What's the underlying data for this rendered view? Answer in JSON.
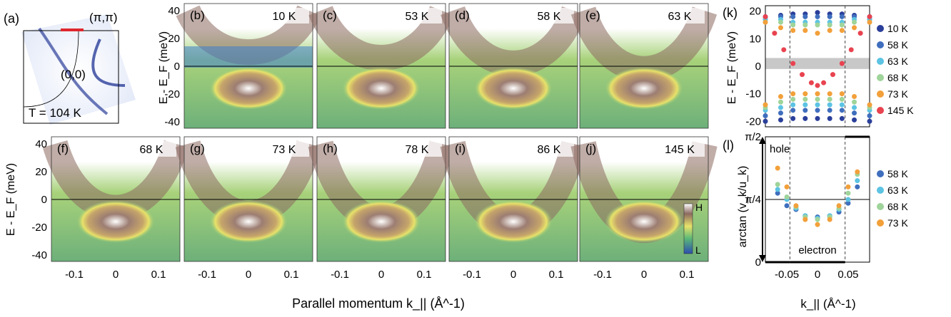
{
  "fermi_panel": {
    "label": "(a)",
    "corner_label": "(π,π)",
    "center_label": "(0,0)",
    "temp_label": "T = 104 K"
  },
  "panels_top_ylabel": "E - E_F (meV)",
  "panels_bottom_ylabel": "E - E_F (meV)",
  "yticks_map": [
    "40",
    "20",
    "0",
    "-20",
    "-40"
  ],
  "xticks_map": [
    "-0.1",
    "0",
    "0.1"
  ],
  "xlabel_shared": "Parallel momentum k_|| (Å^-1)",
  "colorbar": {
    "high": "H",
    "low": "L"
  },
  "map_panels": [
    {
      "label": "(b)",
      "temp": "10 K"
    },
    {
      "label": "(c)",
      "temp": "53 K"
    },
    {
      "label": "(d)",
      "temp": "58 K"
    },
    {
      "label": "(e)",
      "temp": "63 K"
    },
    {
      "label": "(f)",
      "temp": "68 K"
    },
    {
      "label": "(g)",
      "temp": "73 K"
    },
    {
      "label": "(h)",
      "temp": "78 K"
    },
    {
      "label": "(i)",
      "temp": "86 K"
    },
    {
      "label": "(j)",
      "temp": "145 K"
    }
  ],
  "chart_data": [
    {
      "type": "scatter",
      "panel": "(k)",
      "ylabel": "E - E_F (meV)",
      "ylim": [
        -22,
        22
      ],
      "xlim": [
        -0.085,
        0.085
      ],
      "yticks": [
        "20",
        "10",
        "0",
        "-10",
        "-20"
      ],
      "xticks": [
        "-0.05",
        "0",
        "0.05"
      ],
      "series": [
        {
          "name": "10 K",
          "color": "#2a3f9a",
          "x": [
            -0.085,
            -0.06,
            -0.04,
            -0.02,
            0,
            0.02,
            0.04,
            0.06,
            0.085
          ],
          "y_upper": [
            18,
            18.5,
            19,
            19,
            19.5,
            19,
            19,
            18.5,
            18
          ],
          "y_lower": [
            -20,
            -19.5,
            -19,
            -19,
            -19,
            -19,
            -19,
            -19.5,
            -20
          ]
        },
        {
          "name": "58 K",
          "color": "#3f6ebd",
          "x": [
            -0.085,
            -0.06,
            -0.04,
            -0.02,
            0,
            0.02,
            0.04,
            0.06,
            0.085
          ],
          "y_upper": [
            17,
            18,
            18,
            18,
            18,
            18,
            18,
            18,
            17
          ],
          "y_lower": [
            -18,
            -17,
            -16,
            -16,
            -16,
            -16,
            -16,
            -17,
            -18
          ]
        },
        {
          "name": "63 K",
          "color": "#5cc3e3",
          "x": [
            -0.085,
            -0.06,
            -0.04,
            -0.02,
            0,
            0.02,
            0.04,
            0.06,
            0.085
          ],
          "y_upper": [
            17,
            17,
            16,
            16,
            16,
            16,
            16,
            17,
            17
          ],
          "y_lower": [
            -16,
            -15,
            -14,
            -14,
            -14,
            -14,
            -14,
            -15,
            -16
          ]
        },
        {
          "name": "68 K",
          "color": "#9fd49a",
          "x": [
            -0.085,
            -0.06,
            -0.04,
            -0.02,
            0,
            0.02,
            0.04,
            0.06,
            0.085
          ],
          "y_upper": [
            16,
            16,
            15,
            15,
            15,
            15,
            15,
            16,
            16
          ],
          "y_lower": [
            -15,
            -13,
            -12,
            -12,
            -12,
            -12,
            -12,
            -13,
            -15
          ]
        },
        {
          "name": "73 K",
          "color": "#f2a03a",
          "x": [
            -0.085,
            -0.06,
            -0.04,
            -0.02,
            0,
            0.02,
            0.04,
            0.06,
            0.085
          ],
          "y_upper": [
            16,
            14,
            13,
            13,
            12,
            13,
            13,
            14,
            16
          ],
          "y_lower": [
            -14,
            -11,
            -10,
            -10,
            -10,
            -10,
            -10,
            -11,
            -14
          ]
        },
        {
          "name": "145 K",
          "color": "#e8434f",
          "x": [
            -0.085,
            -0.07,
            -0.055,
            -0.04,
            -0.025,
            -0.01,
            0,
            0.01,
            0.025,
            0.04,
            0.055,
            0.07,
            0.085
          ],
          "y": [
            18,
            12,
            6,
            1,
            -3,
            -6,
            -7,
            -6,
            -3,
            1,
            6,
            12,
            18
          ]
        }
      ]
    },
    {
      "type": "scatter",
      "panel": "(l)",
      "ylabel": "arctan (v_k/u_k)",
      "yticks": [
        "π/2",
        "π/4",
        "0"
      ],
      "xticks": [
        "-0.05",
        "0",
        "0.05"
      ],
      "xlabel": "k_|| (Å^-1)",
      "annotations": [
        "hole",
        "electron"
      ],
      "series": [
        {
          "name": "58 K",
          "color": "#3f6ebd",
          "x": [
            -0.065,
            -0.05,
            -0.035,
            -0.02,
            0,
            0.02,
            0.035,
            0.05,
            0.065
          ],
          "y_frac": [
            0.55,
            0.45,
            0.42,
            0.37,
            0.36,
            0.37,
            0.4,
            0.47,
            0.6
          ]
        },
        {
          "name": "63 K",
          "color": "#5cc3e3",
          "x": [
            -0.065,
            -0.05,
            -0.035,
            -0.02,
            0,
            0.02,
            0.035,
            0.05,
            0.065
          ],
          "y_frac": [
            0.58,
            0.5,
            0.43,
            0.37,
            0.35,
            0.37,
            0.42,
            0.5,
            0.65
          ]
        },
        {
          "name": "68 K",
          "color": "#9fd49a",
          "x": [
            -0.065,
            -0.05,
            -0.035,
            -0.02,
            0,
            0.02,
            0.035,
            0.05,
            0.065
          ],
          "y_frac": [
            0.62,
            0.52,
            0.44,
            0.36,
            0.34,
            0.36,
            0.43,
            0.55,
            0.7
          ]
        },
        {
          "name": "73 K",
          "color": "#f2a03a",
          "x": [
            -0.065,
            -0.05,
            -0.035,
            -0.02,
            0,
            0.02,
            0.035,
            0.05,
            0.065
          ],
          "y_frac": [
            0.75,
            0.6,
            0.45,
            0.34,
            0.3,
            0.34,
            0.45,
            0.6,
            0.72
          ]
        }
      ]
    }
  ]
}
